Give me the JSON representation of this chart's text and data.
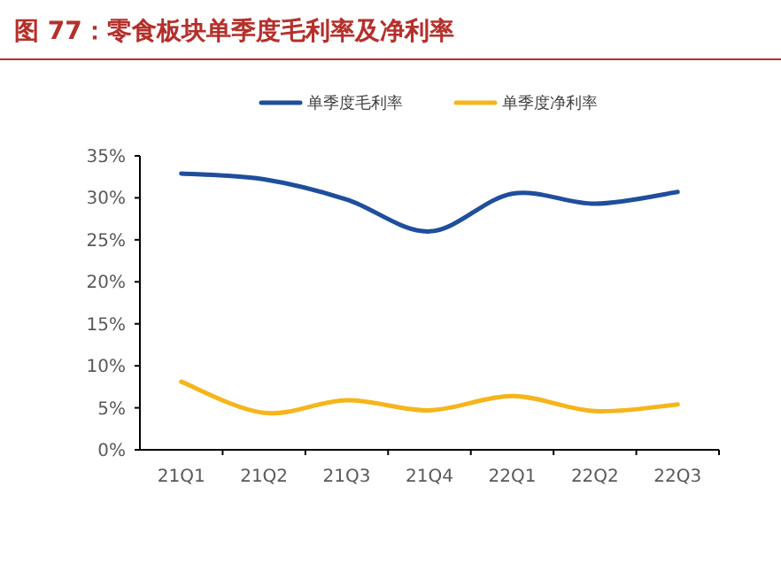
{
  "chart_data": {
    "type": "line",
    "title": "图 77：零食板块单季度毛利率及净利率",
    "categories": [
      "21Q1",
      "21Q2",
      "21Q3",
      "21Q4",
      "22Q1",
      "22Q2",
      "22Q3"
    ],
    "series": [
      {
        "name": "单季度毛利率",
        "color": "#1f4e9c",
        "values": [
          32.9,
          32.2,
          29.8,
          26.0,
          30.5,
          29.3,
          30.7
        ]
      },
      {
        "name": "单季度净利率",
        "color": "#f5b51b",
        "values": [
          8.1,
          4.4,
          5.9,
          4.7,
          6.4,
          4.6,
          5.4
        ]
      }
    ],
    "ylim": [
      0,
      35
    ],
    "yticks": [
      {
        "value": 0,
        "label": "0%"
      },
      {
        "value": 5,
        "label": "5%"
      },
      {
        "value": 10,
        "label": "10%"
      },
      {
        "value": 15,
        "label": "15%"
      },
      {
        "value": 20,
        "label": "20%"
      },
      {
        "value": 25,
        "label": "25%"
      },
      {
        "value": 30,
        "label": "30%"
      },
      {
        "value": 35,
        "label": "35%"
      }
    ],
    "legend": "top",
    "grid": false,
    "marker": "none"
  }
}
